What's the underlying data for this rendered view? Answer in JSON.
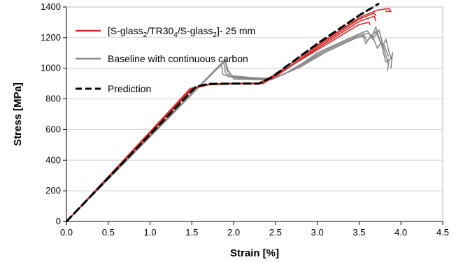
{
  "chart_data": {
    "type": "line",
    "title": "",
    "xlabel": "Strain [%]",
    "ylabel": "Stress [MPa]",
    "xlim": [
      0,
      4.5
    ],
    "ylim": [
      0,
      1400
    ],
    "xticks": [
      "0.0",
      "0.5",
      "1.0",
      "1.5",
      "2.0",
      "2.5",
      "3.0",
      "3.5",
      "4.0",
      "4.5"
    ],
    "yticks": [
      "0",
      "200",
      "400",
      "600",
      "800",
      "1000",
      "1200",
      "1400"
    ],
    "grid": "horizontal",
    "legend_position": "top-left",
    "legend": [
      {
        "pre": "[S-glass",
        "sub1": "2",
        "mid1": "/TR30",
        "sub2": "4",
        "mid2": "/S-glass",
        "sub3": "2",
        "post": "]- 25 mm",
        "color": "#d62b2b",
        "style": "solid"
      },
      {
        "text": "Baseline with continuous carbon",
        "color": "#888888",
        "style": "solid"
      },
      {
        "text": "Prediction",
        "color": "#000000",
        "style": "dashed"
      }
    ],
    "series": [
      {
        "group": "hybrid",
        "color": "#d62b2b",
        "points": [
          [
            0,
            0
          ],
          [
            1.5,
            870
          ],
          [
            1.7,
            895
          ],
          [
            2.0,
            900
          ],
          [
            2.3,
            902
          ],
          [
            2.5,
            960
          ],
          [
            3.0,
            1150
          ],
          [
            3.5,
            1330
          ],
          [
            3.72,
            1380
          ],
          [
            3.86,
            1390
          ],
          [
            3.88,
            1370
          ],
          [
            3.82,
            1372
          ]
        ]
      },
      {
        "group": "hybrid",
        "color": "#d62b2b",
        "points": [
          [
            0,
            0
          ],
          [
            1.5,
            865
          ],
          [
            1.7,
            892
          ],
          [
            2.0,
            898
          ],
          [
            2.35,
            900
          ],
          [
            2.55,
            965
          ],
          [
            3.0,
            1130
          ],
          [
            3.5,
            1305
          ],
          [
            3.68,
            1340
          ],
          [
            3.7,
            1310
          ]
        ]
      },
      {
        "group": "hybrid",
        "color": "#d62b2b",
        "points": [
          [
            0,
            0
          ],
          [
            1.52,
            872
          ],
          [
            1.72,
            896
          ],
          [
            2.0,
            902
          ],
          [
            2.32,
            904
          ],
          [
            2.52,
            962
          ],
          [
            3.0,
            1120
          ],
          [
            3.5,
            1285
          ],
          [
            3.62,
            1300
          ],
          [
            3.63,
            1285
          ]
        ]
      },
      {
        "group": "hybrid",
        "color": "#d62b2b",
        "points": [
          [
            0,
            0
          ],
          [
            1.48,
            868
          ],
          [
            1.7,
            893
          ],
          [
            2.0,
            899
          ],
          [
            2.33,
            901
          ],
          [
            2.53,
            958
          ],
          [
            3.0,
            1140
          ],
          [
            3.5,
            1320
          ],
          [
            3.68,
            1360
          ],
          [
            3.7,
            1345
          ]
        ]
      },
      {
        "group": "baseline",
        "color": "#888888",
        "points": [
          [
            0,
            0
          ],
          [
            1.2,
            670
          ],
          [
            1.88,
            1040
          ],
          [
            1.9,
            975
          ],
          [
            1.92,
            960
          ],
          [
            2.0,
            950
          ],
          [
            2.2,
            940
          ],
          [
            2.4,
            935
          ],
          [
            2.6,
            960
          ],
          [
            3.0,
            1090
          ],
          [
            3.5,
            1225
          ],
          [
            3.6,
            1245
          ],
          [
            3.65,
            1200
          ],
          [
            3.7,
            1270
          ],
          [
            3.75,
            1180
          ],
          [
            3.8,
            1150
          ],
          [
            3.85,
            1080
          ]
        ]
      },
      {
        "group": "baseline",
        "color": "#888888",
        "points": [
          [
            0,
            0
          ],
          [
            1.22,
            680
          ],
          [
            1.9,
            1050
          ],
          [
            1.92,
            985
          ],
          [
            2.0,
            940
          ],
          [
            2.2,
            930
          ],
          [
            2.45,
            930
          ],
          [
            2.7,
            985
          ],
          [
            3.0,
            1100
          ],
          [
            3.4,
            1200
          ],
          [
            3.55,
            1220
          ],
          [
            3.6,
            1180
          ],
          [
            3.7,
            1240
          ],
          [
            3.78,
            1140
          ],
          [
            3.82,
            1190
          ],
          [
            3.88,
            1060
          ],
          [
            3.9,
            1100
          ],
          [
            3.88,
            1000
          ]
        ]
      },
      {
        "group": "baseline",
        "color": "#888888",
        "points": [
          [
            0,
            0
          ],
          [
            1.18,
            660
          ],
          [
            1.85,
            1030
          ],
          [
            1.87,
            960
          ],
          [
            1.95,
            945
          ],
          [
            2.2,
            935
          ],
          [
            2.45,
            925
          ],
          [
            2.8,
            1010
          ],
          [
            3.1,
            1105
          ],
          [
            3.45,
            1195
          ],
          [
            3.55,
            1210
          ],
          [
            3.58,
            1160
          ],
          [
            3.65,
            1220
          ],
          [
            3.72,
            1130
          ],
          [
            3.76,
            1170
          ],
          [
            3.82,
            1040
          ],
          [
            3.86,
            1060
          ],
          [
            3.84,
            985
          ]
        ]
      },
      {
        "group": "baseline",
        "color": "#888888",
        "points": [
          [
            0,
            0
          ],
          [
            1.25,
            690
          ],
          [
            1.9,
            1055
          ],
          [
            1.93,
            990
          ],
          [
            2.0,
            930
          ],
          [
            2.4,
            925
          ],
          [
            2.6,
            960
          ],
          [
            3.0,
            1080
          ],
          [
            3.5,
            1215
          ],
          [
            3.62,
            1230
          ],
          [
            3.66,
            1190
          ],
          [
            3.74,
            1250
          ],
          [
            3.8,
            1120
          ],
          [
            3.85,
            1030
          ]
        ]
      },
      {
        "group": "prediction",
        "color": "#000000",
        "dashed": true,
        "points": [
          [
            0,
            0
          ],
          [
            1.55,
            880
          ],
          [
            1.7,
            898
          ],
          [
            2.0,
            900
          ],
          [
            2.3,
            900
          ],
          [
            2.45,
            940
          ],
          [
            3.0,
            1160
          ],
          [
            3.5,
            1345
          ],
          [
            3.73,
            1420
          ]
        ]
      }
    ]
  }
}
